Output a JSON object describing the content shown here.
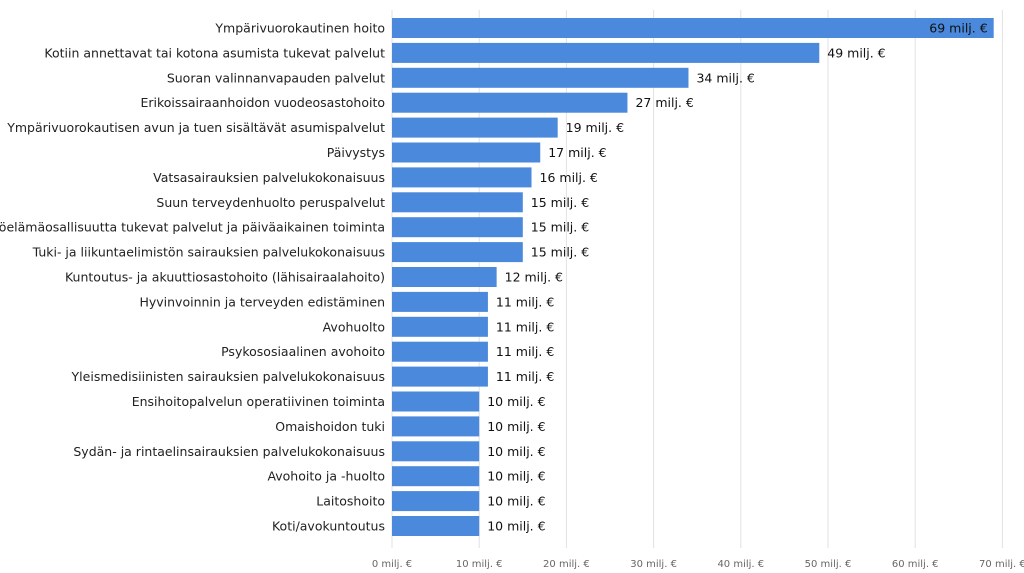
{
  "chart_data": {
    "type": "bar",
    "orientation": "horizontal",
    "bar_color": "#4a89dc",
    "grid": true,
    "xlim": [
      0,
      70
    ],
    "x_ticks": [
      "0 milj. €",
      "10 milj. €",
      "20 milj. €",
      "30 milj. €",
      "40 milj. €",
      "50 milj. €",
      "60 milj. €",
      "70 milj. €"
    ],
    "categories": [
      "Ympärivuorokautinen hoito",
      "Kotiin annettavat tai kotona asumista tukevat palvelut",
      "Suoran valinnanvapauden palvelut",
      "Erikoissairaanhoidon vuodeosastohoito",
      "Ympärivuorokautisen avun ja tuen sisältävät asumispalvelut",
      "Päivystys",
      "Vatsasairauksien palvelukokonaisuus",
      "Suun terveydenhuolto peruspalvelut",
      "Työelämäosallisuutta tukevat palvelut ja päiväaikainen toiminta",
      "Tuki- ja liikuntaelimistön sairauksien palvelukokonaisuus",
      "Kuntoutus- ja akuuttiosastohoito (lähisairaalahoito)",
      "Hyvinvoinnin ja terveyden edistäminen",
      "Avohuolto",
      "Psykososiaalinen avohoito",
      "Yleismedisiinisten sairauksien palvelukokonaisuus",
      "Ensihoitopalvelun operatiivinen toiminta",
      "Omaishoidon tuki",
      "Sydän- ja rintaelinsairauksien palvelukokonaisuus",
      "Avohoito ja -huolto",
      "Laitoshoito",
      "Koti/avokuntoutus"
    ],
    "values": [
      69,
      49,
      34,
      27,
      19,
      17,
      16,
      15,
      15,
      15,
      12,
      11,
      11,
      11,
      11,
      10,
      10,
      10,
      10,
      10,
      10
    ],
    "value_labels": [
      "69 milj. €",
      "49 milj. €",
      "34 milj. €",
      "27 milj. €",
      "19 milj. €",
      "17 milj. €",
      "16 milj. €",
      "15 milj. €",
      "15 milj. €",
      "15 milj. €",
      "12 milj. €",
      "11 milj. €",
      "11 milj. €",
      "11 milj. €",
      "11 milj. €",
      "10 milj. €",
      "10 milj. €",
      "10 milj. €",
      "10 milj. €",
      "10 milj. €",
      "10 milj. €"
    ]
  }
}
